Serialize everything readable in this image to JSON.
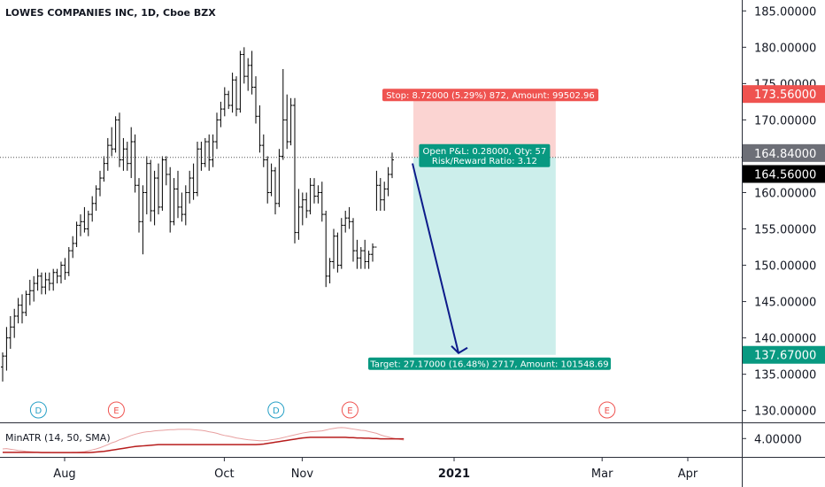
{
  "chart_data": {
    "type": "ohlc",
    "title": "LOWES COMPANIES INC, 1D, Cboe BZX",
    "price_axis": {
      "ylim": [
        128.5,
        186.5
      ],
      "ticks": [
        130,
        135,
        140,
        145,
        150,
        155,
        160,
        165,
        170,
        175,
        180,
        185
      ],
      "tick_labels": [
        "130.00000",
        "135.00000",
        "140.00000",
        "145.00000",
        "150.00000",
        "155.00000",
        "160.00000",
        "165.00000",
        "170.00000",
        "175.00000",
        "180.00000",
        "185.00000"
      ]
    },
    "time_axis": {
      "labels": [
        {
          "text": "Aug",
          "bold": false,
          "bar_index": 15
        },
        {
          "text": "Oct",
          "bold": false,
          "bar_index": 56
        },
        {
          "text": "Nov",
          "bold": false,
          "bar_index": 76
        },
        {
          "text": "2021",
          "bold": true,
          "bar_index": 115
        },
        {
          "text": "Mar",
          "bold": false,
          "bar_index": 153
        },
        {
          "text": "Apr",
          "bold": false,
          "bar_index": 175
        }
      ]
    },
    "bars": [
      {
        "o": 136,
        "h": 138,
        "l": 134,
        "c": 137.5
      },
      {
        "o": 137.5,
        "h": 141.5,
        "l": 135.5,
        "c": 140
      },
      {
        "o": 140,
        "h": 143,
        "l": 138.5,
        "c": 141.5
      },
      {
        "o": 141.5,
        "h": 144,
        "l": 140,
        "c": 143
      },
      {
        "o": 143,
        "h": 145.5,
        "l": 142,
        "c": 144.5
      },
      {
        "o": 144.5,
        "h": 146,
        "l": 142,
        "c": 143.5
      },
      {
        "o": 143.5,
        "h": 146.5,
        "l": 143,
        "c": 146
      },
      {
        "o": 146,
        "h": 148,
        "l": 144.5,
        "c": 146.5
      },
      {
        "o": 146.5,
        "h": 148.5,
        "l": 145,
        "c": 147.5
      },
      {
        "o": 147.5,
        "h": 149.5,
        "l": 146.5,
        "c": 148.5
      },
      {
        "o": 148.5,
        "h": 149,
        "l": 146,
        "c": 147
      },
      {
        "o": 147,
        "h": 149,
        "l": 146,
        "c": 148
      },
      {
        "o": 148,
        "h": 149,
        "l": 146.5,
        "c": 147.5
      },
      {
        "o": 147.5,
        "h": 149.5,
        "l": 146.5,
        "c": 149
      },
      {
        "o": 149,
        "h": 149.5,
        "l": 147.5,
        "c": 148.5
      },
      {
        "o": 148.5,
        "h": 150.5,
        "l": 147.5,
        "c": 150
      },
      {
        "o": 150,
        "h": 151,
        "l": 148,
        "c": 149
      },
      {
        "o": 149,
        "h": 152.5,
        "l": 148.5,
        "c": 152
      },
      {
        "o": 152,
        "h": 154,
        "l": 151,
        "c": 153
      },
      {
        "o": 153,
        "h": 156,
        "l": 152.5,
        "c": 155.5
      },
      {
        "o": 155.5,
        "h": 157,
        "l": 154,
        "c": 156
      },
      {
        "o": 156,
        "h": 158,
        "l": 154.5,
        "c": 155
      },
      {
        "o": 155,
        "h": 157.5,
        "l": 154,
        "c": 157
      },
      {
        "o": 157,
        "h": 159.5,
        "l": 156,
        "c": 158.5
      },
      {
        "o": 158.5,
        "h": 161,
        "l": 157.5,
        "c": 160.5
      },
      {
        "o": 160.5,
        "h": 163,
        "l": 159.5,
        "c": 162
      },
      {
        "o": 162,
        "h": 165,
        "l": 161.5,
        "c": 164
      },
      {
        "o": 164,
        "h": 167.5,
        "l": 163,
        "c": 166.5
      },
      {
        "o": 166.5,
        "h": 169,
        "l": 165,
        "c": 166
      },
      {
        "o": 166,
        "h": 170.5,
        "l": 165.5,
        "c": 170
      },
      {
        "o": 170,
        "h": 171,
        "l": 163.5,
        "c": 164.5
      },
      {
        "o": 164.5,
        "h": 167.5,
        "l": 163,
        "c": 166
      },
      {
        "o": 166,
        "h": 167,
        "l": 163,
        "c": 164
      },
      {
        "o": 164,
        "h": 169,
        "l": 162,
        "c": 167
      },
      {
        "o": 167,
        "h": 168,
        "l": 160,
        "c": 161
      },
      {
        "o": 161,
        "h": 162,
        "l": 154.5,
        "c": 156
      },
      {
        "o": 156,
        "h": 161,
        "l": 151.5,
        "c": 160
      },
      {
        "o": 160,
        "h": 165,
        "l": 157,
        "c": 164
      },
      {
        "o": 164,
        "h": 164.5,
        "l": 156,
        "c": 157.5
      },
      {
        "o": 157.5,
        "h": 163,
        "l": 155.5,
        "c": 162
      },
      {
        "o": 162,
        "h": 164,
        "l": 157,
        "c": 158
      },
      {
        "o": 158,
        "h": 165,
        "l": 157.5,
        "c": 164.5
      },
      {
        "o": 164.5,
        "h": 165,
        "l": 161,
        "c": 162.5
      },
      {
        "o": 162.5,
        "h": 163.5,
        "l": 154.5,
        "c": 156
      },
      {
        "o": 156,
        "h": 162,
        "l": 155.5,
        "c": 160.5
      },
      {
        "o": 160.5,
        "h": 163,
        "l": 156.5,
        "c": 158
      },
      {
        "o": 158,
        "h": 160,
        "l": 156,
        "c": 157
      },
      {
        "o": 157,
        "h": 161,
        "l": 155.5,
        "c": 160
      },
      {
        "o": 160,
        "h": 163,
        "l": 158.5,
        "c": 162
      },
      {
        "o": 162,
        "h": 164,
        "l": 159,
        "c": 160
      },
      {
        "o": 160,
        "h": 167,
        "l": 159.5,
        "c": 166
      },
      {
        "o": 166,
        "h": 167,
        "l": 163,
        "c": 164
      },
      {
        "o": 164,
        "h": 167.5,
        "l": 163.5,
        "c": 167
      },
      {
        "o": 167,
        "h": 168,
        "l": 163,
        "c": 164.5
      },
      {
        "o": 164.5,
        "h": 168,
        "l": 163.5,
        "c": 167
      },
      {
        "o": 167,
        "h": 171,
        "l": 166,
        "c": 170
      },
      {
        "o": 170,
        "h": 172.5,
        "l": 169,
        "c": 171.5
      },
      {
        "o": 171.5,
        "h": 174.5,
        "l": 170.5,
        "c": 173.5
      },
      {
        "o": 173.5,
        "h": 174,
        "l": 171.5,
        "c": 172
      },
      {
        "o": 172,
        "h": 176.5,
        "l": 171,
        "c": 175.5
      },
      {
        "o": 175.5,
        "h": 176,
        "l": 170.5,
        "c": 171.5
      },
      {
        "o": 171.5,
        "h": 179.5,
        "l": 171,
        "c": 179
      },
      {
        "o": 179,
        "h": 180,
        "l": 175,
        "c": 176
      },
      {
        "o": 176,
        "h": 178.5,
        "l": 174,
        "c": 177.5
      },
      {
        "o": 177.5,
        "h": 179.5,
        "l": 173.5,
        "c": 174.5
      },
      {
        "o": 174.5,
        "h": 176,
        "l": 169.5,
        "c": 170.5
      },
      {
        "o": 170.5,
        "h": 172,
        "l": 165.5,
        "c": 166.5
      },
      {
        "o": 166.5,
        "h": 168,
        "l": 163.5,
        "c": 164.5
      },
      {
        "o": 164.5,
        "h": 165,
        "l": 158.5,
        "c": 160
      },
      {
        "o": 160,
        "h": 164,
        "l": 159.5,
        "c": 163
      },
      {
        "o": 163,
        "h": 163.5,
        "l": 157,
        "c": 158.5
      },
      {
        "o": 158.5,
        "h": 166,
        "l": 158,
        "c": 165
      },
      {
        "o": 165,
        "h": 177,
        "l": 164.5,
        "c": 170
      },
      {
        "o": 170,
        "h": 173.5,
        "l": 166,
        "c": 167
      },
      {
        "o": 167,
        "h": 173,
        "l": 166.5,
        "c": 172
      },
      {
        "o": 172,
        "h": 173,
        "l": 153,
        "c": 154.5
      },
      {
        "o": 154.5,
        "h": 160.5,
        "l": 153.5,
        "c": 158
      },
      {
        "o": 158,
        "h": 160,
        "l": 155.5,
        "c": 159
      },
      {
        "o": 159,
        "h": 160,
        "l": 156.5,
        "c": 157.5
      },
      {
        "o": 157.5,
        "h": 162,
        "l": 157,
        "c": 161
      },
      {
        "o": 161,
        "h": 162,
        "l": 158.5,
        "c": 159.5
      },
      {
        "o": 159.5,
        "h": 161,
        "l": 158.5,
        "c": 160
      },
      {
        "o": 160,
        "h": 161.5,
        "l": 156,
        "c": 157
      },
      {
        "o": 157,
        "h": 157.5,
        "l": 147,
        "c": 148.5
      },
      {
        "o": 148.5,
        "h": 151,
        "l": 147.5,
        "c": 150.5
      },
      {
        "o": 150.5,
        "h": 155,
        "l": 149.5,
        "c": 154
      },
      {
        "o": 154,
        "h": 154.5,
        "l": 149,
        "c": 150
      },
      {
        "o": 150,
        "h": 156.5,
        "l": 149.5,
        "c": 155.5
      },
      {
        "o": 155.5,
        "h": 157.5,
        "l": 154.5,
        "c": 156.5
      },
      {
        "o": 156.5,
        "h": 158,
        "l": 155,
        "c": 156
      },
      {
        "o": 156,
        "h": 156.5,
        "l": 150.5,
        "c": 152
      },
      {
        "o": 152,
        "h": 153.5,
        "l": 149.5,
        "c": 151
      },
      {
        "o": 151,
        "h": 152.5,
        "l": 149.5,
        "c": 152
      },
      {
        "o": 152,
        "h": 153.5,
        "l": 149.5,
        "c": 150.5
      },
      {
        "o": 150.5,
        "h": 152,
        "l": 149.5,
        "c": 151.5
      },
      {
        "o": 151.5,
        "h": 153,
        "l": 150.5,
        "c": 152.5
      },
      {
        "o": 152.5,
        "h": 163,
        "l": 157.5,
        "c": 161
      },
      {
        "o": 161,
        "h": 162,
        "l": 157.5,
        "c": 159
      },
      {
        "o": 159,
        "h": 161.5,
        "l": 157.5,
        "c": 160.5
      },
      {
        "o": 160.5,
        "h": 163.5,
        "l": 159.5,
        "c": 162.5
      },
      {
        "o": 162.5,
        "h": 165.5,
        "l": 162,
        "c": 164.5
      }
    ],
    "last_price": 164.56,
    "last_price_label": "164.56000",
    "crosshair_price": 164.84,
    "crosshair_label": "164.84000",
    "short_position": {
      "entry": 164.84,
      "stop_price": 173.56,
      "stop_price_label": "173.56000",
      "target_price": 137.67,
      "target_price_label": "137.67000",
      "start_bar": 105,
      "end_bar": 142,
      "stop_text": "Stop: 8.72000 (5.29%) 872, Amount: 99502.96",
      "pnl_text": "Open P&L: 0.28000, Qty: 57",
      "rr_text": "Risk/Reward Ratio: 3.12",
      "target_text": "Target: 27.17000 (16.48%) 2717, Amount: 101548.69"
    },
    "events": [
      {
        "letter": "D",
        "bar_index": 6,
        "type": "dividend"
      },
      {
        "letter": "E",
        "bar_index": 26,
        "type": "earnings"
      },
      {
        "letter": "D",
        "bar_index": 67,
        "type": "dividend"
      },
      {
        "letter": "E",
        "bar_index": 86,
        "type": "earnings"
      },
      {
        "letter": "E",
        "bar_index": 152,
        "type": "earnings"
      }
    ],
    "indicator": {
      "title": "MinATR (14, 50, SMA)",
      "ylim": [
        3.4,
        4.5
      ],
      "tick_label": "4.00000",
      "tick_value": 4.0,
      "thin_series": [
        3.66,
        3.67,
        3.65,
        3.63,
        3.61,
        3.6,
        3.58,
        3.57,
        3.56,
        3.55,
        3.55,
        3.55,
        3.55,
        3.54,
        3.54,
        3.54,
        3.54,
        3.54,
        3.55,
        3.55,
        3.56,
        3.57,
        3.6,
        3.63,
        3.66,
        3.7,
        3.75,
        3.8,
        3.86,
        3.9,
        3.96,
        4.0,
        4.05,
        4.1,
        4.14,
        4.17,
        4.2,
        4.22,
        4.23,
        4.25,
        4.26,
        4.27,
        4.28,
        4.29,
        4.29,
        4.3,
        4.3,
        4.3,
        4.3,
        4.29,
        4.28,
        4.27,
        4.25,
        4.22,
        4.2,
        4.17,
        4.13,
        4.1,
        4.08,
        4.05,
        4.02,
        4.0,
        3.98,
        3.96,
        3.95,
        3.94,
        3.93,
        3.93,
        3.94,
        3.96,
        3.98,
        4.0,
        4.03,
        4.06,
        4.09,
        4.12,
        4.15,
        4.18,
        4.2,
        4.22,
        4.23,
        4.24,
        4.25,
        4.28,
        4.31,
        4.33,
        4.35,
        4.36,
        4.35,
        4.33,
        4.31,
        4.29,
        4.27,
        4.26,
        4.23,
        4.2,
        4.17,
        4.12,
        4.08,
        4.05,
        4.02,
        3.99,
        3.97,
        3.95
      ],
      "thick_series": [
        3.55,
        3.55,
        3.55,
        3.55,
        3.55,
        3.55,
        3.55,
        3.55,
        3.55,
        3.55,
        3.54,
        3.54,
        3.54,
        3.54,
        3.54,
        3.54,
        3.54,
        3.54,
        3.54,
        3.54,
        3.54,
        3.54,
        3.54,
        3.55,
        3.56,
        3.57,
        3.58,
        3.6,
        3.62,
        3.64,
        3.66,
        3.68,
        3.7,
        3.72,
        3.74,
        3.75,
        3.76,
        3.77,
        3.78,
        3.79,
        3.8,
        3.8,
        3.8,
        3.8,
        3.8,
        3.8,
        3.8,
        3.8,
        3.8,
        3.8,
        3.8,
        3.8,
        3.8,
        3.8,
        3.8,
        3.8,
        3.8,
        3.8,
        3.8,
        3.8,
        3.8,
        3.8,
        3.8,
        3.8,
        3.8,
        3.8,
        3.81,
        3.82,
        3.84,
        3.86,
        3.88,
        3.9,
        3.92,
        3.94,
        3.96,
        3.98,
        4.0,
        4.02,
        4.03,
        4.04,
        4.04,
        4.04,
        4.04,
        4.04,
        4.04,
        4.04,
        4.04,
        4.04,
        4.04,
        4.03,
        4.03,
        4.02,
        4.02,
        4.01,
        4.01,
        4.0,
        4.0,
        3.99,
        3.99,
        3.99,
        3.99,
        3.99,
        3.99,
        3.99
      ]
    },
    "colors": {
      "bar": "#000000",
      "stop_zone": "#fbd4d2",
      "target_zone": "#cceeeb",
      "stop_label": "#ef5350",
      "target_label": "#089981",
      "arrow": "#0d1b8a",
      "last_price_bg": "#000000",
      "crosshair_bg": "#6d6f77",
      "dividend": "#26a0c6",
      "earnings": "#ef5350",
      "indicator_thin": "#e8a0a0",
      "indicator_thick": "#b71c1c"
    }
  }
}
